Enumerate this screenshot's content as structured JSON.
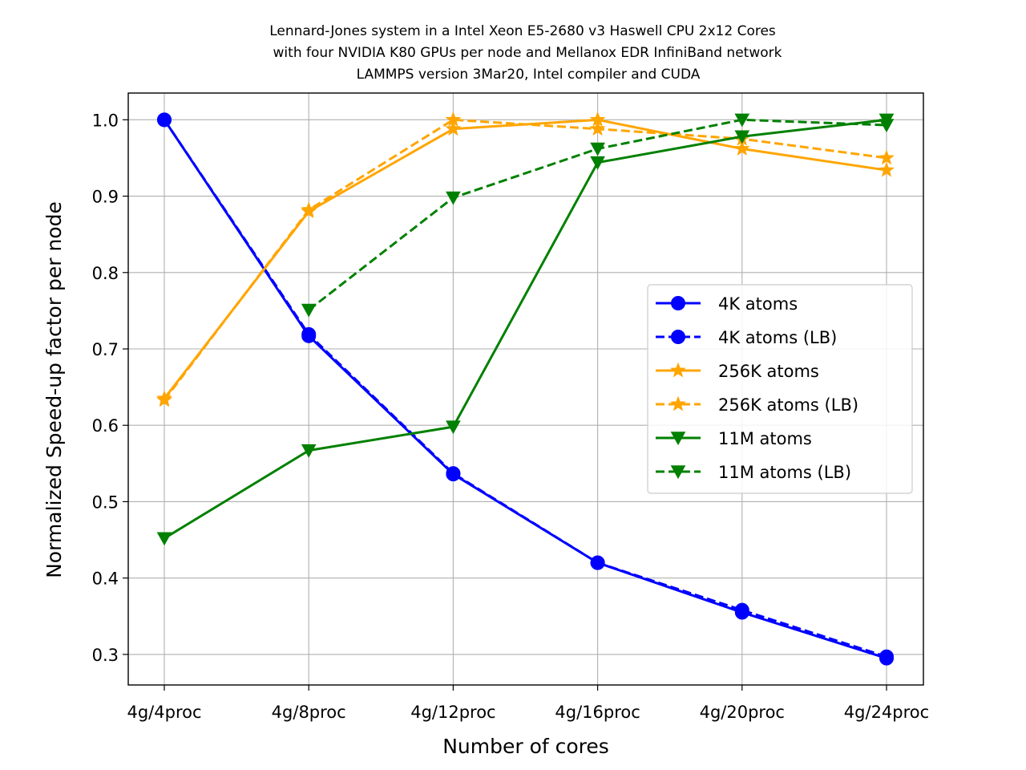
{
  "chart_data": {
    "type": "line",
    "title_lines": [
      "Lennard-Jones system in a Intel Xeon E5-2680 v3 Haswell CPU 2x12 Cores",
      "with four NVIDIA K80 GPUs per node and Mellanox EDR InfiniBand network",
      "LAMMPS version 3Mar20, Intel compiler and CUDA"
    ],
    "xlabel": "Number of cores",
    "ylabel": "Normalized Speed-up factor per node",
    "categories": [
      "4g/4proc",
      "4g/8proc",
      "4g/12proc",
      "4g/16proc",
      "4g/20proc",
      "4g/24proc"
    ],
    "ylim": [
      0.26,
      1.035
    ],
    "yticks": [
      0.3,
      0.4,
      0.5,
      0.6,
      0.7,
      0.8,
      0.9,
      1.0
    ],
    "ytick_labels": [
      "0.3",
      "0.4",
      "0.5",
      "0.6",
      "0.7",
      "0.8",
      "0.9",
      "1.0"
    ],
    "grid": true,
    "legend_position": "center-right",
    "series": [
      {
        "name": "4K atoms",
        "color": "#0000ff",
        "linestyle": "solid",
        "marker": "circle",
        "values": [
          1.0,
          0.717,
          0.536,
          0.42,
          0.355,
          0.295
        ]
      },
      {
        "name": "4K atoms (LB)",
        "color": "#0000ff",
        "linestyle": "dashed",
        "marker": "circle",
        "values": [
          1.0,
          0.719,
          0.537,
          0.42,
          0.358,
          0.297
        ]
      },
      {
        "name": "256K atoms",
        "color": "#ffa500",
        "linestyle": "solid",
        "marker": "star",
        "values": [
          0.635,
          0.88,
          0.988,
          1.0,
          0.962,
          0.934
        ]
      },
      {
        "name": "256K atoms (LB)",
        "color": "#ffa500",
        "linestyle": "dashed",
        "marker": "star",
        "values": [
          0.633,
          0.882,
          1.0,
          0.988,
          0.975,
          0.95
        ]
      },
      {
        "name": "11M atoms",
        "color": "#008000",
        "linestyle": "solid",
        "marker": "triangle-down",
        "values": [
          0.452,
          0.567,
          0.598,
          0.944,
          0.978,
          1.0
        ]
      },
      {
        "name": "11M atoms (LB)",
        "color": "#008000",
        "linestyle": "dashed",
        "marker": "triangle-down",
        "values": [
          null,
          0.751,
          0.898,
          0.962,
          1.0,
          0.993
        ]
      }
    ]
  }
}
